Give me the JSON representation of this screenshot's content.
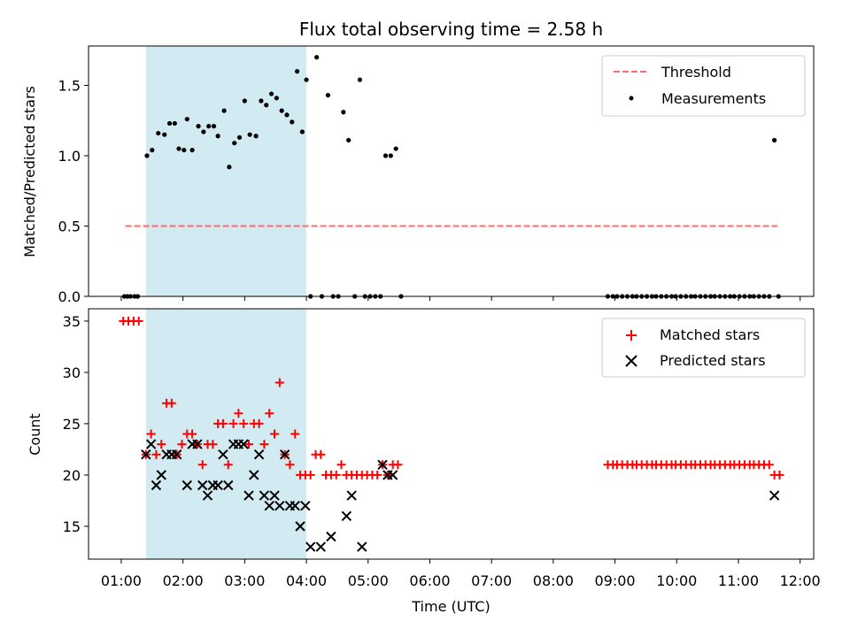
{
  "figure": {
    "title": "Flux total observing time = 2.58 h",
    "xlabel": "Time (UTC)",
    "x_ticks": [
      "01:00",
      "02:00",
      "03:00",
      "04:00",
      "05:00",
      "06:00",
      "07:00",
      "08:00",
      "09:00",
      "10:00",
      "11:00",
      "12:00"
    ],
    "shaded_interval": [
      "01:24",
      "04:00"
    ],
    "colors": {
      "shade": "#add8e6",
      "threshold": "#ff6b6b",
      "matched": "#ff0000",
      "predicted": "#000000",
      "measurements": "#000000"
    }
  },
  "chart_data": [
    {
      "type": "scatter",
      "ylabel": "Matched/Predicted stars",
      "ylim": [
        0,
        1.78
      ],
      "y_ticks": [
        "0.0",
        "0.5",
        "1.0",
        "1.5"
      ],
      "legend_position": "top-right",
      "series": [
        {
          "name": "Threshold",
          "style": "dashed-line",
          "points": [
            [
              "01:04",
              0.5
            ],
            [
              "11:38",
              0.5
            ]
          ]
        },
        {
          "name": "Measurements",
          "style": "dots",
          "points": [
            [
              "01:03",
              0
            ],
            [
              "01:06",
              0
            ],
            [
              "01:09",
              0
            ],
            [
              "01:13",
              0
            ],
            [
              "01:16",
              0
            ],
            [
              "01:25",
              1.0
            ],
            [
              "01:30",
              1.04
            ],
            [
              "01:36",
              1.16
            ],
            [
              "01:42",
              1.15
            ],
            [
              "01:47",
              1.23
            ],
            [
              "01:52",
              1.23
            ],
            [
              "01:56",
              1.05
            ],
            [
              "02:01",
              1.04
            ],
            [
              "02:04",
              1.26
            ],
            [
              "02:09",
              1.04
            ],
            [
              "02:15",
              1.21
            ],
            [
              "02:20",
              1.17
            ],
            [
              "02:25",
              1.21
            ],
            [
              "02:30",
              1.21
            ],
            [
              "02:34",
              1.14
            ],
            [
              "02:40",
              1.32
            ],
            [
              "02:45",
              0.92
            ],
            [
              "02:50",
              1.09
            ],
            [
              "02:55",
              1.13
            ],
            [
              "03:00",
              1.39
            ],
            [
              "03:05",
              1.15
            ],
            [
              "03:11",
              1.14
            ],
            [
              "03:16",
              1.39
            ],
            [
              "03:21",
              1.36
            ],
            [
              "03:26",
              1.44
            ],
            [
              "03:31",
              1.41
            ],
            [
              "03:36",
              1.32
            ],
            [
              "03:41",
              1.29
            ],
            [
              "03:46",
              1.24
            ],
            [
              "03:51",
              1.6
            ],
            [
              "03:56",
              1.17
            ],
            [
              "04:00",
              1.54
            ],
            [
              "04:04",
              0
            ],
            [
              "04:10",
              1.7
            ],
            [
              "04:15",
              0
            ],
            [
              "04:21",
              1.43
            ],
            [
              "04:26",
              0
            ],
            [
              "04:31",
              0
            ],
            [
              "04:36",
              1.31
            ],
            [
              "04:41",
              1.11
            ],
            [
              "04:47",
              0
            ],
            [
              "04:52",
              1.54
            ],
            [
              "04:57",
              0
            ],
            [
              "05:02",
              0
            ],
            [
              "05:07",
              0
            ],
            [
              "05:12",
              0
            ],
            [
              "05:17",
              1.0
            ],
            [
              "05:22",
              1.0
            ],
            [
              "05:27",
              1.05
            ],
            [
              "05:32",
              0
            ],
            [
              "08:53",
              0
            ],
            [
              "08:58",
              0
            ],
            [
              "09:02",
              0
            ],
            [
              "09:07",
              0
            ],
            [
              "09:12",
              0
            ],
            [
              "09:17",
              0
            ],
            [
              "09:21",
              0
            ],
            [
              "09:26",
              0
            ],
            [
              "09:31",
              0
            ],
            [
              "09:36",
              0
            ],
            [
              "09:40",
              0
            ],
            [
              "09:45",
              0
            ],
            [
              "09:50",
              0
            ],
            [
              "09:55",
              0
            ],
            [
              "09:59",
              0
            ],
            [
              "10:04",
              0
            ],
            [
              "10:09",
              0
            ],
            [
              "10:14",
              0
            ],
            [
              "10:18",
              0
            ],
            [
              "10:23",
              0
            ],
            [
              "10:28",
              0
            ],
            [
              "10:33",
              0
            ],
            [
              "10:37",
              0
            ],
            [
              "10:42",
              0
            ],
            [
              "10:47",
              0
            ],
            [
              "10:52",
              0
            ],
            [
              "10:56",
              0
            ],
            [
              "11:01",
              0
            ],
            [
              "11:06",
              0
            ],
            [
              "11:11",
              0
            ],
            [
              "11:15",
              0
            ],
            [
              "11:20",
              0
            ],
            [
              "11:25",
              0
            ],
            [
              "11:30",
              0
            ],
            [
              "11:35",
              1.11
            ],
            [
              "11:39",
              0
            ]
          ]
        }
      ]
    },
    {
      "type": "scatter",
      "ylabel": "Count",
      "ylim": [
        11.8,
        36.2
      ],
      "y_ticks": [
        "15",
        "20",
        "25",
        "30",
        "35"
      ],
      "legend_position": "top-right",
      "series": [
        {
          "name": "Matched stars",
          "style": "plus",
          "points": [
            [
              "01:02",
              35
            ],
            [
              "01:07",
              35
            ],
            [
              "01:12",
              35
            ],
            [
              "01:17",
              35
            ],
            [
              "01:24",
              22
            ],
            [
              "01:29",
              24
            ],
            [
              "01:34",
              22
            ],
            [
              "01:39",
              23
            ],
            [
              "01:44",
              27
            ],
            [
              "01:49",
              27
            ],
            [
              "01:54",
              22
            ],
            [
              "01:59",
              23
            ],
            [
              "02:04",
              24
            ],
            [
              "02:09",
              24
            ],
            [
              "02:14",
              23
            ],
            [
              "02:19",
              21
            ],
            [
              "02:24",
              23
            ],
            [
              "02:29",
              23
            ],
            [
              "02:34",
              25
            ],
            [
              "02:39",
              25
            ],
            [
              "02:44",
              21
            ],
            [
              "02:49",
              25
            ],
            [
              "02:54",
              26
            ],
            [
              "02:59",
              25
            ],
            [
              "03:04",
              23
            ],
            [
              "03:09",
              25
            ],
            [
              "03:14",
              25
            ],
            [
              "03:19",
              23
            ],
            [
              "03:24",
              26
            ],
            [
              "03:29",
              24
            ],
            [
              "03:34",
              29
            ],
            [
              "03:39",
              22
            ],
            [
              "03:44",
              21
            ],
            [
              "03:49",
              24
            ],
            [
              "03:54",
              20
            ],
            [
              "03:59",
              20
            ],
            [
              "04:04",
              20
            ],
            [
              "04:09",
              22
            ],
            [
              "04:14",
              22
            ],
            [
              "04:19",
              20
            ],
            [
              "04:24",
              20
            ],
            [
              "04:29",
              20
            ],
            [
              "04:34",
              21
            ],
            [
              "04:39",
              20
            ],
            [
              "04:44",
              20
            ],
            [
              "04:49",
              20
            ],
            [
              "04:54",
              20
            ],
            [
              "04:59",
              20
            ],
            [
              "05:04",
              20
            ],
            [
              "05:09",
              20
            ],
            [
              "05:14",
              21
            ],
            [
              "05:19",
              20
            ],
            [
              "05:24",
              21
            ],
            [
              "05:29",
              21
            ],
            [
              "08:53",
              21
            ],
            [
              "08:58",
              21
            ],
            [
              "09:02",
              21
            ],
            [
              "09:07",
              21
            ],
            [
              "09:12",
              21
            ],
            [
              "09:17",
              21
            ],
            [
              "09:21",
              21
            ],
            [
              "09:26",
              21
            ],
            [
              "09:31",
              21
            ],
            [
              "09:36",
              21
            ],
            [
              "09:40",
              21
            ],
            [
              "09:45",
              21
            ],
            [
              "09:50",
              21
            ],
            [
              "09:55",
              21
            ],
            [
              "09:59",
              21
            ],
            [
              "10:04",
              21
            ],
            [
              "10:09",
              21
            ],
            [
              "10:14",
              21
            ],
            [
              "10:18",
              21
            ],
            [
              "10:23",
              21
            ],
            [
              "10:28",
              21
            ],
            [
              "10:33",
              21
            ],
            [
              "10:37",
              21
            ],
            [
              "10:42",
              21
            ],
            [
              "10:47",
              21
            ],
            [
              "10:52",
              21
            ],
            [
              "10:56",
              21
            ],
            [
              "11:01",
              21
            ],
            [
              "11:06",
              21
            ],
            [
              "11:11",
              21
            ],
            [
              "11:15",
              21
            ],
            [
              "11:20",
              21
            ],
            [
              "11:25",
              21
            ],
            [
              "11:30",
              21
            ],
            [
              "11:35",
              20
            ],
            [
              "11:40",
              20
            ]
          ]
        },
        {
          "name": "Predicted stars",
          "style": "x",
          "points": [
            [
              "01:24",
              22
            ],
            [
              "01:29",
              23
            ],
            [
              "01:34",
              19
            ],
            [
              "01:39",
              20
            ],
            [
              "01:44",
              22
            ],
            [
              "01:49",
              22
            ],
            [
              "01:54",
              22
            ],
            [
              "02:04",
              19
            ],
            [
              "02:09",
              23
            ],
            [
              "02:14",
              23
            ],
            [
              "02:19",
              19
            ],
            [
              "02:24",
              18
            ],
            [
              "02:29",
              19
            ],
            [
              "02:34",
              19
            ],
            [
              "02:39",
              22
            ],
            [
              "02:44",
              19
            ],
            [
              "02:49",
              23
            ],
            [
              "02:54",
              23
            ],
            [
              "02:59",
              23
            ],
            [
              "03:04",
              18
            ],
            [
              "03:09",
              20
            ],
            [
              "03:14",
              22
            ],
            [
              "03:19",
              18
            ],
            [
              "03:24",
              17
            ],
            [
              "03:29",
              18
            ],
            [
              "03:34",
              17
            ],
            [
              "03:39",
              22
            ],
            [
              "03:44",
              17
            ],
            [
              "03:49",
              17
            ],
            [
              "03:54",
              15
            ],
            [
              "03:59",
              17
            ],
            [
              "04:04",
              13
            ],
            [
              "04:14",
              13
            ],
            [
              "04:24",
              14
            ],
            [
              "04:39",
              16
            ],
            [
              "04:44",
              18
            ],
            [
              "04:54",
              13
            ],
            [
              "05:14",
              21
            ],
            [
              "05:19",
              20
            ],
            [
              "05:24",
              20
            ],
            [
              "11:35",
              18
            ]
          ]
        }
      ]
    }
  ]
}
